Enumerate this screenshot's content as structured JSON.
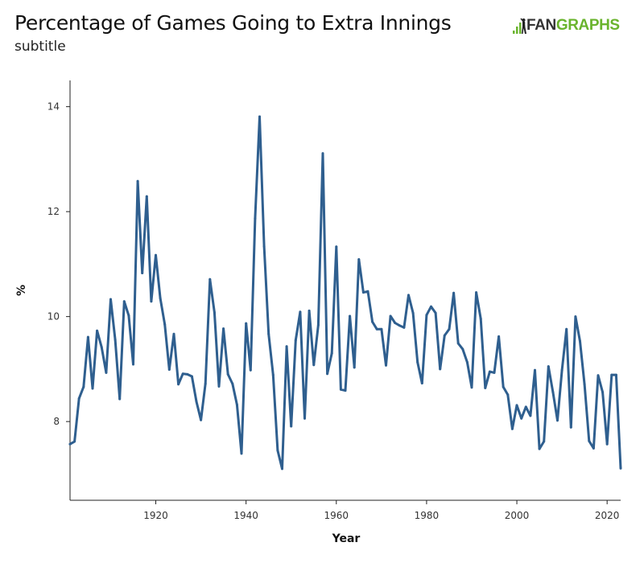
{
  "header": {
    "title": "Percentage of Games Going to Extra Innings",
    "subtitle": "subtitle"
  },
  "logo": {
    "text_left": "FAN",
    "text_right": "GRAPHS",
    "accent_color": "#6ab42d",
    "dark_color": "#333333"
  },
  "chart_data": {
    "type": "line",
    "title": "Percentage of Games Going to Extra Innings",
    "subtitle": "subtitle",
    "xlabel": "Year",
    "ylabel": "%",
    "xlim": [
      1901,
      2023
    ],
    "ylim": [
      6.5,
      14.5
    ],
    "x_ticks": [
      1920,
      1940,
      1960,
      1980,
      2000,
      2020
    ],
    "y_ticks": [
      8,
      10,
      12,
      14
    ],
    "grid": false,
    "line_color": "#2f5f8f",
    "series": [
      {
        "x": [
          1901,
          1902,
          1903,
          1904,
          1905,
          1906,
          1907,
          1908,
          1909,
          1910,
          1911,
          1912,
          1913,
          1914,
          1915,
          1916,
          1917,
          1918,
          1919,
          1920,
          1921,
          1922,
          1923,
          1924,
          1925,
          1926,
          1927,
          1928,
          1929,
          1930,
          1931,
          1932,
          1933,
          1934,
          1935,
          1936,
          1937,
          1938,
          1939,
          1940,
          1941,
          1942,
          1943,
          1944,
          1945,
          1946,
          1947,
          1948,
          1949,
          1950,
          1951,
          1952,
          1953,
          1954,
          1955,
          1956,
          1957,
          1958,
          1959,
          1960,
          1961,
          1962,
          1963,
          1964,
          1965,
          1966,
          1967,
          1968,
          1969,
          1970,
          1971,
          1972,
          1973,
          1974,
          1975,
          1976,
          1977,
          1978,
          1979,
          1980,
          1981,
          1982,
          1983,
          1984,
          1985,
          1986,
          1987,
          1988,
          1989,
          1990,
          1991,
          1992,
          1993,
          1994,
          1995,
          1996,
          1997,
          1998,
          1999,
          2000,
          2001,
          2002,
          2003,
          2004,
          2005,
          2006,
          2007,
          2008,
          2009,
          2010,
          2011,
          2012,
          2013,
          2014,
          2015,
          2016,
          2017,
          2018,
          2019,
          2020,
          2021,
          2022,
          2023
        ],
        "y": [
          7.57,
          7.62,
          8.44,
          8.66,
          9.61,
          8.63,
          9.73,
          9.42,
          8.93,
          10.33,
          9.56,
          8.43,
          10.29,
          10.02,
          9.09,
          12.58,
          10.83,
          12.29,
          10.29,
          11.17,
          10.35,
          9.85,
          8.99,
          9.67,
          8.71,
          8.91,
          8.9,
          8.86,
          8.38,
          8.03,
          8.72,
          10.71,
          10.08,
          8.67,
          9.77,
          8.9,
          8.72,
          8.32,
          7.39,
          9.87,
          8.98,
          11.87,
          13.81,
          11.34,
          9.67,
          8.89,
          7.45,
          7.1,
          9.43,
          7.91,
          9.55,
          10.09,
          8.06,
          10.11,
          9.08,
          9.84,
          13.11,
          8.91,
          9.3,
          11.33,
          8.61,
          8.59,
          10.01,
          9.03,
          11.09,
          10.46,
          10.48,
          9.9,
          9.76,
          9.76,
          9.07,
          10.01,
          9.88,
          9.83,
          9.79,
          10.41,
          10.07,
          9.13,
          8.73,
          10.03,
          10.19,
          10.07,
          9.0,
          9.64,
          9.76,
          10.45,
          9.49,
          9.38,
          9.13,
          8.65,
          10.46,
          9.96,
          8.64,
          8.95,
          8.93,
          9.62,
          8.66,
          8.51,
          7.86,
          8.31,
          8.06,
          8.28,
          8.11,
          8.98,
          7.48,
          7.62,
          9.05,
          8.56,
          8.02,
          8.98,
          9.76,
          7.89,
          10.0,
          9.53,
          8.71,
          7.63,
          7.49,
          8.88,
          8.56,
          7.57,
          8.89,
          8.89,
          7.11
        ]
      }
    ]
  }
}
